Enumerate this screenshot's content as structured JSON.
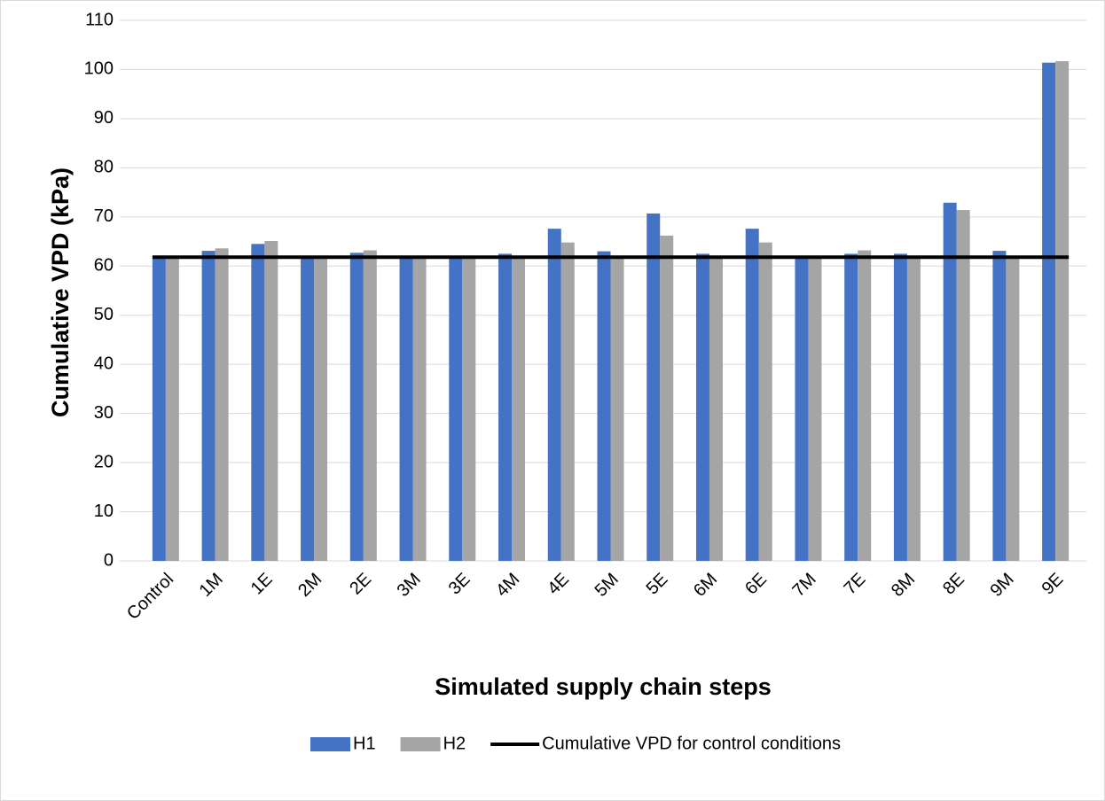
{
  "chart_data": {
    "type": "bar",
    "x_label": "Simulated supply chain steps",
    "y_label": "Cumulative VPD (kPa)",
    "categories": [
      "Control",
      "1M",
      "1E",
      "2M",
      "2E",
      "3M",
      "3E",
      "4M",
      "4E",
      "5M",
      "5E",
      "6M",
      "6E",
      "7M",
      "7E",
      "8M",
      "8E",
      "9M",
      "9E"
    ],
    "series": [
      {
        "name": "H1",
        "type": "bar",
        "color": "#4472c4",
        "values": [
          61.8,
          63.1,
          64.5,
          62.0,
          62.7,
          61.8,
          62.0,
          62.5,
          67.6,
          63.0,
          70.7,
          62.5,
          67.6,
          61.9,
          62.5,
          62.5,
          72.9,
          63.1,
          101.4
        ]
      },
      {
        "name": "H2",
        "type": "bar",
        "color": "#a5a5a5",
        "values": [
          61.8,
          63.6,
          65.1,
          62.0,
          63.2,
          61.8,
          62.0,
          62.0,
          64.8,
          62.0,
          66.2,
          62.0,
          64.8,
          61.9,
          63.2,
          62.0,
          71.4,
          62.0,
          101.7
        ]
      },
      {
        "name": "Cumulative VPD for control conditions",
        "type": "line",
        "color": "#000000",
        "values": [
          61.8,
          61.8,
          61.8,
          61.8,
          61.8,
          61.8,
          61.8,
          61.8,
          61.8,
          61.8,
          61.8,
          61.8,
          61.8,
          61.8,
          61.8,
          61.8,
          61.8,
          61.8,
          61.8
        ]
      }
    ],
    "ylim": [
      0,
      110
    ],
    "yticks": [
      0,
      10,
      20,
      30,
      40,
      50,
      60,
      70,
      80,
      90,
      100,
      110
    ],
    "grid": true,
    "legend": "bottom"
  }
}
